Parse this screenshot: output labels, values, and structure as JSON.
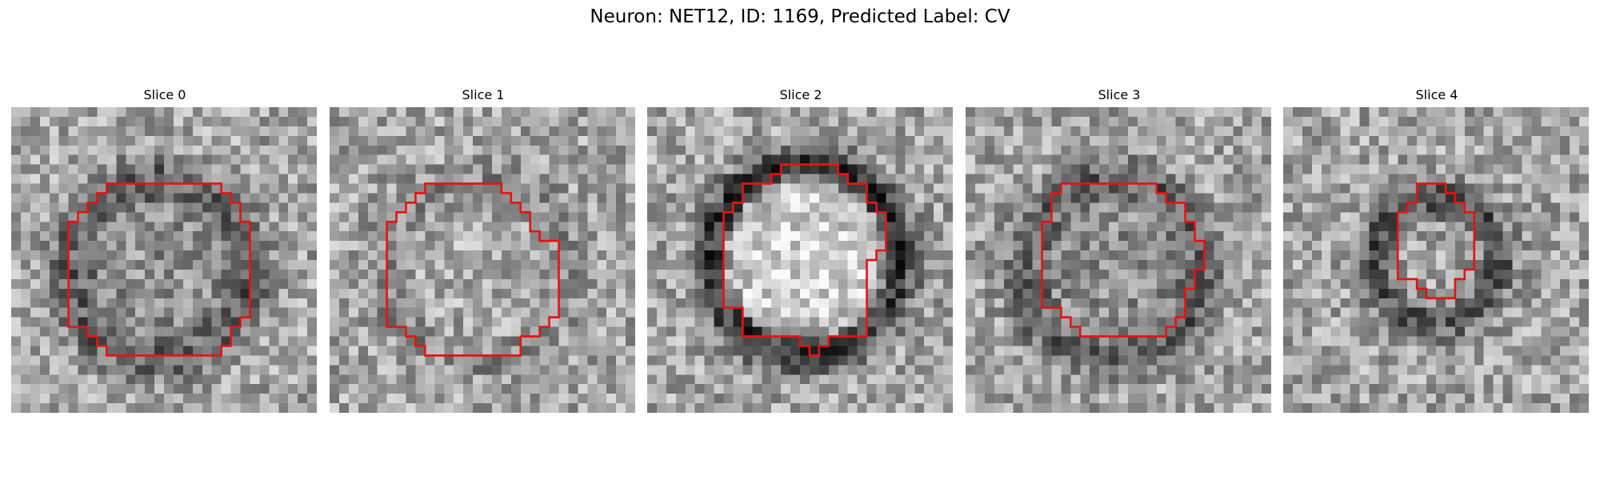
{
  "figure": {
    "title": "Neuron: NET12, ID: 1169, Predicted Label: CV",
    "contour_color": "#e31414",
    "colormap": "gray"
  },
  "panels": [
    {
      "title": "Slice 0",
      "seed": 11,
      "ring": "dark"
    },
    {
      "title": "Slice 1",
      "seed": 23,
      "ring": "faint"
    },
    {
      "title": "Slice 2",
      "seed": 37,
      "ring": "strong"
    },
    {
      "title": "Slice 3",
      "seed": 53,
      "ring": "dark"
    },
    {
      "title": "Slice 4",
      "seed": 71,
      "ring": "small"
    }
  ]
}
